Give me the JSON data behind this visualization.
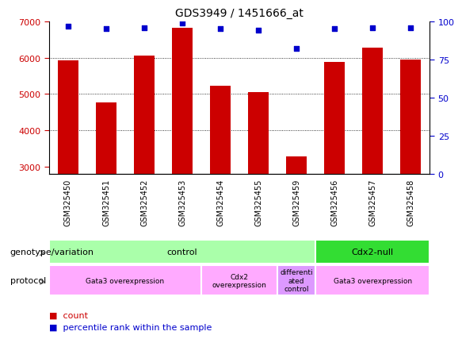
{
  "title": "GDS3949 / 1451666_at",
  "samples": [
    "GSM325450",
    "GSM325451",
    "GSM325452",
    "GSM325453",
    "GSM325454",
    "GSM325455",
    "GSM325459",
    "GSM325456",
    "GSM325457",
    "GSM325458"
  ],
  "counts": [
    5920,
    4770,
    6050,
    6820,
    5220,
    5050,
    3280,
    5870,
    6280,
    5940
  ],
  "percentile_ranks": [
    97,
    95,
    96,
    99,
    95,
    94,
    82,
    95,
    96,
    96
  ],
  "ylim_left": [
    2800,
    7000
  ],
  "ylim_right": [
    0,
    100
  ],
  "bar_color": "#cc0000",
  "dot_color": "#0000cc",
  "genotype_groups": [
    {
      "label": "control",
      "start": 0,
      "end": 7,
      "color": "#aaffaa"
    },
    {
      "label": "Cdx2-null",
      "start": 7,
      "end": 10,
      "color": "#33dd33"
    }
  ],
  "protocol_groups": [
    {
      "label": "Gata3 overexpression",
      "start": 0,
      "end": 4,
      "color": "#ffaaff"
    },
    {
      "label": "Cdx2\noverexpression",
      "start": 4,
      "end": 6,
      "color": "#ffaaff"
    },
    {
      "label": "differenti\nated\ncontrol",
      "start": 6,
      "end": 7,
      "color": "#dd99ff"
    },
    {
      "label": "Gata3 overexpression",
      "start": 7,
      "end": 10,
      "color": "#ffaaff"
    }
  ],
  "yticks_left": [
    3000,
    4000,
    5000,
    6000,
    7000
  ],
  "yticks_right": [
    0,
    25,
    50,
    75,
    100
  ],
  "left_tick_color": "#cc0000",
  "right_tick_color": "#0000cc",
  "xlabel_row1": "genotype/variation",
  "xlabel_row2": "protocol",
  "legend_count_color": "#cc0000",
  "legend_dot_color": "#0000cc",
  "xtick_bg_color": "#cccccc",
  "xtick_divider_color": "#ffffff"
}
